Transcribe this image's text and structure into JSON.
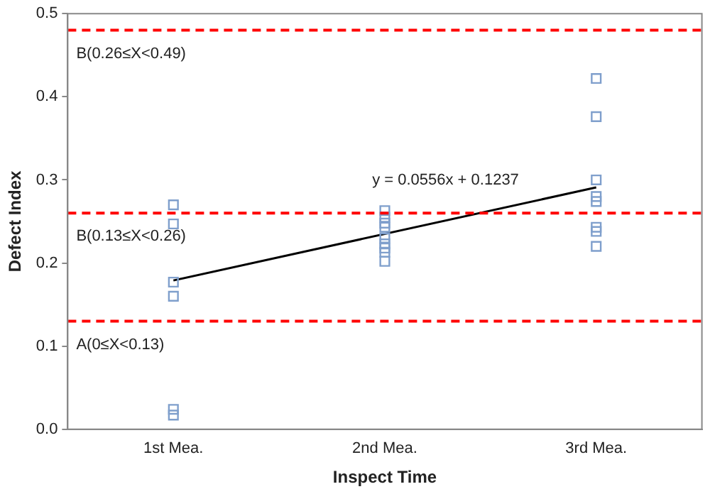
{
  "chart_data": {
    "type": "scatter",
    "xlabel": "Inspect Time",
    "ylabel": "Defect Index",
    "categories": [
      "1st Mea.",
      "2nd Mea.",
      "3rd Mea."
    ],
    "series": [
      {
        "color": "#7f9fcc",
        "marker": "square",
        "x": [
          "1st Mea.",
          "1st Mea.",
          "1st Mea.",
          "1st Mea.",
          "1st Mea.",
          "1st Mea.",
          "2nd Mea.",
          "2nd Mea.",
          "2nd Mea.",
          "2nd Mea.",
          "2nd Mea.",
          "2nd Mea.",
          "2nd Mea.",
          "2nd Mea.",
          "2nd Mea.",
          "3rd Mea.",
          "3rd Mea.",
          "3rd Mea.",
          "3rd Mea.",
          "3rd Mea.",
          "3rd Mea.",
          "3rd Mea.",
          "3rd Mea."
        ],
        "values": [
          0.27,
          0.247,
          0.177,
          0.16,
          0.024,
          0.017,
          0.263,
          0.255,
          0.248,
          0.243,
          0.23,
          0.223,
          0.218,
          0.213,
          0.202,
          0.422,
          0.376,
          0.3,
          0.28,
          0.274,
          0.243,
          0.238,
          0.22
        ]
      },
      {
        "type": "line",
        "color": "#000000",
        "marker": "none",
        "x": [
          "1st Mea.",
          "3rd Mea."
        ],
        "values": [
          0.179,
          0.291
        ]
      }
    ],
    "ylim": [
      0,
      0.5
    ],
    "yticks": [
      {
        "value": 0,
        "label": "0.0"
      },
      0.1,
      0.2,
      0.3,
      0.4,
      0.5
    ],
    "grid": false,
    "legend": false,
    "ref_lines": [
      {
        "axis": "y",
        "value": 0.48,
        "label": "B(0.26≤X<0.49)",
        "color": "#ff0000",
        "line_style": "dashed"
      },
      {
        "axis": "y",
        "value": 0.26,
        "label": "B(0.13≤X<0.26)",
        "color": "#ff0000",
        "line_style": "dashed"
      },
      {
        "axis": "y",
        "value": 0.13,
        "label": "A(0≤X<0.13)",
        "color": "#ff0000",
        "line_style": "dashed"
      }
    ],
    "annotations": [
      "y = 0.0556x + 0.1237"
    ]
  }
}
